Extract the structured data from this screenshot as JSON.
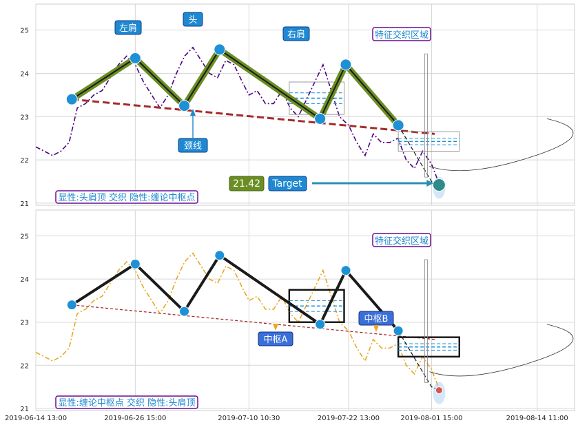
{
  "chart_data": [
    {
      "type": "line",
      "panel": "top",
      "ylim": [
        20.95,
        25.6
      ],
      "yticks": [
        21,
        22,
        23,
        24,
        25
      ],
      "series": [
        {
          "color": "#4b0082",
          "style": "dash-dot",
          "x": [
            "2019-06-14 13:00",
            "2019-06-15 14:00",
            "2019-06-16 14:00",
            "2019-06-17 14:00",
            "2019-06-18 14:00",
            "2019-06-19 14:00",
            "2019-06-20 14:00",
            "2019-06-21 14:00",
            "2019-06-22 14:00",
            "2019-06-23 14:00",
            "2019-06-24 14:00",
            "2019-06-25 14:00",
            "2019-06-26 15:00",
            "2019-06-27 15:00",
            "2019-06-28 15:00",
            "2019-06-29 15:00",
            "2019-06-30 15:00",
            "2019-07-01 15:00",
            "2019-07-02 15:00",
            "2019-07-03 15:00",
            "2019-07-04 15:00",
            "2019-07-05 15:00",
            "2019-07-06 15:00",
            "2019-07-07 15:00",
            "2019-07-08 15:00",
            "2019-07-09 15:00",
            "2019-07-10 10:30",
            "2019-07-11 10:30",
            "2019-07-12 10:30",
            "2019-07-13 10:30",
            "2019-07-14 10:30",
            "2019-07-15 10:30",
            "2019-07-16 10:30",
            "2019-07-17 10:30",
            "2019-07-18 10:30",
            "2019-07-19 10:30",
            "2019-07-20 10:30",
            "2019-07-21 10:30",
            "2019-07-22 13:00",
            "2019-07-23 13:00",
            "2019-07-24 13:00",
            "2019-07-25 13:00",
            "2019-07-26 13:00",
            "2019-07-27 13:00",
            "2019-07-28 13:00",
            "2019-07-29 13:00",
            "2019-07-30 13:00",
            "2019-07-31 13:00",
            "2019-08-01 15:00",
            "2019-08-02 13:00"
          ],
          "y": [
            22.3,
            22.2,
            22.1,
            22.2,
            22.4,
            23.2,
            23.3,
            23.5,
            23.6,
            23.9,
            24.2,
            24.4,
            24.2,
            23.8,
            23.5,
            23.2,
            23.5,
            24.0,
            24.4,
            24.6,
            24.3,
            24.0,
            23.9,
            24.3,
            24.2,
            23.8,
            23.5,
            23.6,
            23.3,
            23.3,
            23.6,
            23.2,
            23.0,
            23.4,
            23.8,
            24.2,
            23.6,
            23.0,
            22.8,
            22.4,
            22.1,
            22.6,
            22.4,
            22.4,
            22.5,
            22.0,
            21.8,
            22.2,
            21.9,
            21.45
          ]
        }
      ],
      "pattern": {
        "x": [
          "2019-06-18 22:00",
          "2019-06-26 15:00",
          "2019-07-02 14:00",
          "2019-07-06 21:00",
          "2019-07-19 02:00",
          "2019-07-22 05:00",
          "2019-07-28 14:00",
          "2019-08-01 15:00",
          "2019-08-02 13:00"
        ],
        "y": [
          23.4,
          24.35,
          23.25,
          24.55,
          22.95,
          24.2,
          22.8,
          21.5,
          21.42
        ]
      },
      "neckline": {
        "x": [
          "2019-06-18 22:00",
          "2019-08-02 00:00"
        ],
        "y": [
          23.4,
          22.6
        ]
      },
      "pivot_box": {
        "x": [
          "2019-07-15 08:00",
          "2019-07-22 00:00"
        ],
        "ylim": [
          23.05,
          23.8
        ]
      },
      "pivot_box_2": {
        "x": [
          "2019-07-28 14:00",
          "2019-08-05 00:00"
        ],
        "ylim": [
          22.2,
          22.65
        ]
      },
      "annotations": [
        "左肩",
        "头",
        "右肩",
        "特征交织区域",
        "颈线",
        "21.42",
        "Target"
      ],
      "caption": "显性:头肩顶 交织 隐性:缠论中枢点"
    },
    {
      "type": "line",
      "panel": "bottom",
      "ylim": [
        20.95,
        25.6
      ],
      "yticks": [
        21,
        22,
        23,
        24,
        25
      ],
      "series": [
        {
          "color": "#e8a820",
          "style": "dash-dot",
          "x": [
            "2019-06-14 13:00",
            "2019-06-15 14:00",
            "2019-06-16 14:00",
            "2019-06-17 14:00",
            "2019-06-18 14:00",
            "2019-06-19 14:00",
            "2019-06-20 14:00",
            "2019-06-21 14:00",
            "2019-06-22 14:00",
            "2019-06-23 14:00",
            "2019-06-24 14:00",
            "2019-06-25 14:00",
            "2019-06-26 15:00",
            "2019-06-27 15:00",
            "2019-06-28 15:00",
            "2019-06-29 15:00",
            "2019-06-30 15:00",
            "2019-07-01 15:00",
            "2019-07-02 15:00",
            "2019-07-03 15:00",
            "2019-07-04 15:00",
            "2019-07-05 15:00",
            "2019-07-06 15:00",
            "2019-07-07 15:00",
            "2019-07-08 15:00",
            "2019-07-09 15:00",
            "2019-07-10 10:30",
            "2019-07-11 10:30",
            "2019-07-12 10:30",
            "2019-07-13 10:30",
            "2019-07-14 10:30",
            "2019-07-15 10:30",
            "2019-07-16 10:30",
            "2019-07-17 10:30",
            "2019-07-18 10:30",
            "2019-07-19 10:30",
            "2019-07-20 10:30",
            "2019-07-21 10:30",
            "2019-07-22 13:00",
            "2019-07-23 13:00",
            "2019-07-24 13:00",
            "2019-07-25 13:00",
            "2019-07-26 13:00",
            "2019-07-27 13:00",
            "2019-07-28 13:00",
            "2019-07-29 13:00",
            "2019-07-30 13:00",
            "2019-07-31 13:00",
            "2019-08-01 15:00",
            "2019-08-02 13:00"
          ],
          "y": [
            22.3,
            22.2,
            22.1,
            22.2,
            22.4,
            23.2,
            23.3,
            23.5,
            23.6,
            23.9,
            24.2,
            24.4,
            24.2,
            23.8,
            23.5,
            23.2,
            23.5,
            24.0,
            24.4,
            24.6,
            24.3,
            24.0,
            23.9,
            24.3,
            24.2,
            23.8,
            23.5,
            23.6,
            23.3,
            23.3,
            23.6,
            23.2,
            23.0,
            23.4,
            23.8,
            24.2,
            23.6,
            23.0,
            22.8,
            22.4,
            22.1,
            22.6,
            22.4,
            22.4,
            22.5,
            22.0,
            21.8,
            22.2,
            21.9,
            21.45
          ]
        }
      ],
      "pattern": {
        "x": [
          "2019-06-18 22:00",
          "2019-06-26 15:00",
          "2019-07-02 14:00",
          "2019-07-06 21:00",
          "2019-07-19 02:00",
          "2019-07-22 05:00",
          "2019-07-28 14:00",
          "2019-08-01 15:00",
          "2019-08-02 13:00"
        ],
        "y": [
          23.4,
          24.35,
          23.25,
          24.55,
          22.95,
          24.2,
          22.8,
          21.5,
          21.42
        ]
      },
      "neckline": {
        "x": [
          "2019-06-18 22:00",
          "2019-08-02 00:00"
        ],
        "y": [
          23.4,
          22.6
        ]
      },
      "pivot_box": {
        "x": [
          "2019-07-15 08:00",
          "2019-07-22 00:00"
        ],
        "ylim": [
          23.0,
          23.75
        ]
      },
      "pivot_box_2": {
        "x": [
          "2019-07-28 14:00",
          "2019-08-05 00:00"
        ],
        "ylim": [
          22.2,
          22.65
        ]
      },
      "annotations": [
        "中枢A",
        "中枢B",
        "特征交织区域"
      ],
      "caption": "显性:缠论中枢点 交织 隐性:头肩顶"
    }
  ],
  "x_axis": {
    "ticks": [
      "2019-06-14 13:00",
      "2019-06-26 15:00",
      "2019-07-10 10:30",
      "2019-07-22 13:00",
      "2019-08-01 15:00",
      "2019-08-14 11:00"
    ],
    "range": [
      "2019-06-14 13:00",
      "2019-08-19 00:00"
    ]
  },
  "colors": {
    "pattern_green": "#6b8e23",
    "pivot_blue": "#1e90d6",
    "neckline_red": "#a52a2a",
    "label_blue": "#1e88d0",
    "label_purple_border": "#6a0d91",
    "target_green": "#6b8e23"
  }
}
